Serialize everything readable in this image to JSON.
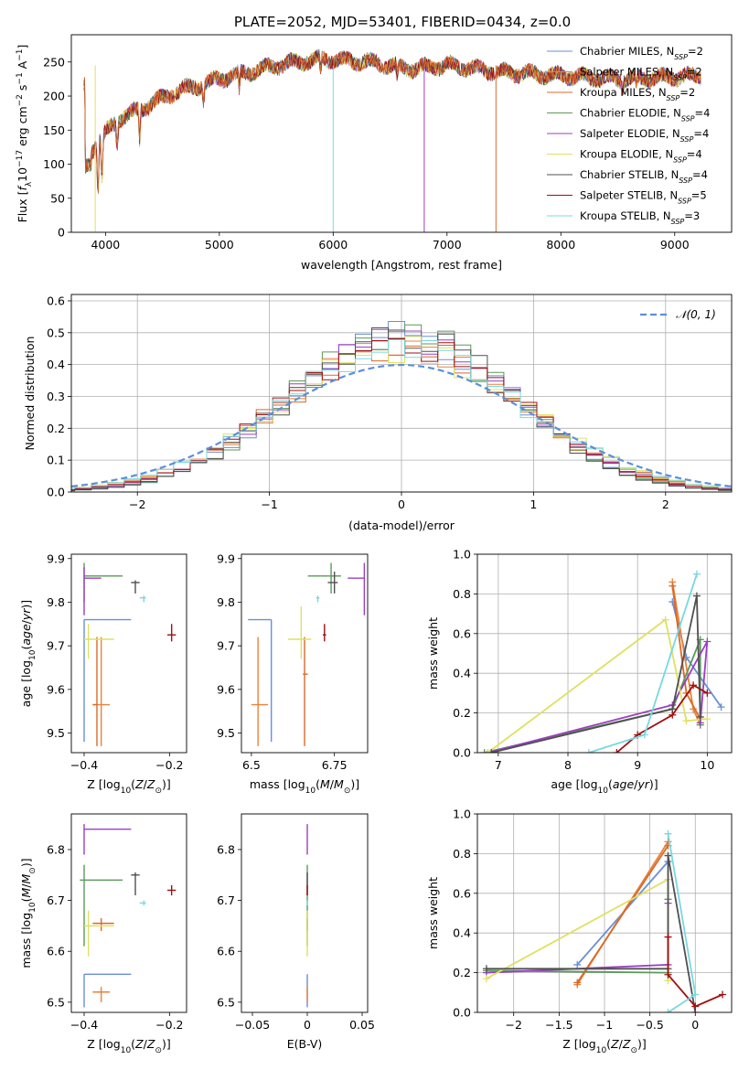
{
  "title": "PLATE=2052, MJD=53401, FIBERID=0434, z=0.0",
  "series_colors": [
    "#6a8fd8",
    "#e8823b",
    "#d86a2a",
    "#5a9a5a",
    "#9b3fc0",
    "#e0e060",
    "#505050",
    "#a01010",
    "#78d8e0"
  ],
  "chart_data": [
    {
      "type": "line",
      "xlabel": "wavelength [Angstrom, rest frame]",
      "ylabel": "Flux [f_λ 10^-17 erg cm^-2 s^-1 A^-1]",
      "xlim": [
        3700,
        9500
      ],
      "ylim": [
        0,
        290
      ],
      "xticks": [
        4000,
        5000,
        6000,
        7000,
        8000,
        9000
      ],
      "yticks": [
        0,
        50,
        100,
        150,
        200,
        250
      ],
      "grid": false,
      "legend": "top-right",
      "series": [
        {
          "name": "Chabrier MILES, N_SSP=2"
        },
        {
          "name": "Salpeter MILES, N_SSP=2"
        },
        {
          "name": "Kroupa MILES, N_SSP=2"
        },
        {
          "name": "Chabrier ELODIE, N_SSP=4"
        },
        {
          "name": "Salpeter ELODIE, N_SSP=4"
        },
        {
          "name": "Kroupa ELODIE, N_SSP=4"
        },
        {
          "name": "Chabrier STELIB, N_SSP=4"
        },
        {
          "name": "Salpeter STELIB, N_SSP=5"
        },
        {
          "name": "Kroupa STELIB, N_SSP=3"
        }
      ],
      "continuum": {
        "x": [
          3820,
          3950,
          4100,
          4300,
          4600,
          5000,
          5500,
          5900,
          6300,
          6700,
          7000,
          7500,
          8000,
          8500,
          9000,
          9200
        ],
        "y": [
          110,
          135,
          165,
          180,
          205,
          225,
          245,
          255,
          250,
          240,
          245,
          235,
          230,
          225,
          228,
          230
        ]
      }
    },
    {
      "type": "area",
      "xlabel": "(data-model)/error",
      "ylabel": "Normed distribution",
      "xlim": [
        -2.5,
        2.5
      ],
      "ylim": [
        0,
        0.62
      ],
      "xticks": [
        -2,
        -1,
        0,
        1,
        2
      ],
      "yticks": [
        0.0,
        0.1,
        0.2,
        0.3,
        0.4,
        0.5,
        0.6
      ],
      "grid": true,
      "legend": "top-right",
      "reference_curve": "𝒩(0, 1)"
    },
    {
      "type": "scatter",
      "xlabel": "Z [log10(Z/Z⊙)]",
      "ylabel": "age  [log10(age/yr)]",
      "xlim": [
        -0.43,
        -0.16
      ],
      "ylim": [
        9.455,
        9.91
      ],
      "xticks": [
        -0.4,
        -0.2
      ],
      "yticks": [
        9.5,
        9.6,
        9.7,
        9.8,
        9.9
      ],
      "points": [
        {
          "x": -0.4,
          "y": 9.76,
          "xlo": -0.4,
          "xhi": -0.29,
          "ylo": 9.48,
          "yhi": 9.76
        },
        {
          "x": -0.36,
          "y": 9.565,
          "xlo": -0.38,
          "xhi": -0.34,
          "ylo": 9.47,
          "yhi": 9.72
        },
        {
          "x": -0.37,
          "y": 9.565,
          "xlo": -0.38,
          "xhi": -0.37,
          "ylo": 9.47,
          "yhi": 9.72
        },
        {
          "x": -0.4,
          "y": 9.86,
          "xlo": -0.4,
          "xhi": -0.31,
          "ylo": 9.8,
          "yhi": 9.89
        },
        {
          "x": -0.4,
          "y": 9.855,
          "xlo": -0.4,
          "xhi": -0.36,
          "ylo": 9.77,
          "yhi": 9.88
        },
        {
          "x": -0.39,
          "y": 9.715,
          "xlo": -0.4,
          "xhi": -0.33,
          "ylo": 9.67,
          "yhi": 9.75
        },
        {
          "x": -0.28,
          "y": 9.845,
          "xlo": -0.29,
          "xhi": -0.27,
          "ylo": 9.82,
          "yhi": 9.85
        },
        {
          "x": -0.195,
          "y": 9.725,
          "xlo": -0.205,
          "xhi": -0.185,
          "ylo": 9.71,
          "yhi": 9.75
        },
        {
          "x": -0.26,
          "y": 9.81,
          "xlo": -0.27,
          "xhi": -0.255,
          "ylo": 9.8,
          "yhi": 9.815
        }
      ]
    },
    {
      "type": "scatter",
      "xlabel": "mass [log10(M/M⊙)]",
      "ylabel": "",
      "xlim": [
        6.47,
        6.85
      ],
      "ylim": [
        9.455,
        9.91
      ],
      "xticks": [
        6.5,
        6.75
      ],
      "yticks": [
        9.5,
        9.6,
        9.7,
        9.8,
        9.9
      ],
      "points": [
        {
          "x": 6.56,
          "y": 9.76,
          "xlo": 6.49,
          "xhi": 6.56,
          "ylo": 9.48,
          "yhi": 9.76
        },
        {
          "x": 6.52,
          "y": 9.565,
          "xlo": 6.5,
          "xhi": 6.55,
          "ylo": 9.47,
          "yhi": 9.72
        },
        {
          "x": 6.66,
          "y": 9.635,
          "xlo": 6.655,
          "xhi": 6.67,
          "ylo": 9.47,
          "yhi": 9.72
        },
        {
          "x": 6.74,
          "y": 9.86,
          "xlo": 6.67,
          "xhi": 6.77,
          "ylo": 9.82,
          "yhi": 9.89
        },
        {
          "x": 6.84,
          "y": 9.855,
          "xlo": 6.79,
          "xhi": 6.84,
          "ylo": 9.77,
          "yhi": 9.89
        },
        {
          "x": 6.65,
          "y": 9.715,
          "xlo": 6.61,
          "xhi": 6.68,
          "ylo": 9.67,
          "yhi": 9.79
        },
        {
          "x": 6.75,
          "y": 9.845,
          "xlo": 6.73,
          "xhi": 6.76,
          "ylo": 9.82,
          "yhi": 9.87
        },
        {
          "x": 6.72,
          "y": 9.725,
          "xlo": 6.715,
          "xhi": 6.725,
          "ylo": 9.71,
          "yhi": 9.75
        },
        {
          "x": 6.7,
          "y": 9.81,
          "xlo": 6.695,
          "xhi": 6.705,
          "ylo": 9.8,
          "yhi": 9.815
        }
      ]
    },
    {
      "type": "line",
      "xlabel": "age  [log10(age/yr)]",
      "ylabel": "mass weight",
      "xlim": [
        6.7,
        10.35
      ],
      "ylim": [
        0,
        1.0
      ],
      "xticks": [
        7,
        8,
        9,
        10
      ],
      "yticks": [
        0.0,
        0.2,
        0.4,
        0.6,
        0.8,
        1.0
      ],
      "grid": true
    },
    {
      "type": "scatter",
      "xlabel": "Z [log10(Z/Z⊙)]",
      "ylabel": "mass [log10(M/M⊙)]",
      "xlim": [
        -0.43,
        -0.16
      ],
      "ylim": [
        6.48,
        6.87
      ],
      "xticks": [
        -0.4,
        -0.2
      ],
      "yticks": [
        6.5,
        6.6,
        6.7,
        6.8
      ],
      "points": [
        {
          "x": -0.4,
          "y": 6.555,
          "xlo": -0.4,
          "xhi": -0.29,
          "ylo": 6.49,
          "yhi": 6.555
        },
        {
          "x": -0.36,
          "y": 6.52,
          "xlo": -0.38,
          "xhi": -0.34,
          "ylo": 6.5,
          "yhi": 6.53
        },
        {
          "x": -0.36,
          "y": 6.655,
          "xlo": -0.38,
          "xhi": -0.33,
          "ylo": 6.64,
          "yhi": 6.665
        },
        {
          "x": -0.4,
          "y": 6.74,
          "xlo": -0.41,
          "xhi": -0.31,
          "ylo": 6.61,
          "yhi": 6.77
        },
        {
          "x": -0.4,
          "y": 6.84,
          "xlo": -0.4,
          "xhi": -0.29,
          "ylo": 6.79,
          "yhi": 6.85
        },
        {
          "x": -0.39,
          "y": 6.65,
          "xlo": -0.4,
          "xhi": -0.33,
          "ylo": 6.59,
          "yhi": 6.68
        },
        {
          "x": -0.28,
          "y": 6.75,
          "xlo": -0.29,
          "xhi": -0.27,
          "ylo": 6.71,
          "yhi": 6.755
        },
        {
          "x": -0.195,
          "y": 6.72,
          "xlo": -0.205,
          "xhi": -0.185,
          "ylo": 6.71,
          "yhi": 6.73
        },
        {
          "x": -0.26,
          "y": 6.695,
          "xlo": -0.27,
          "xhi": -0.255,
          "ylo": 6.69,
          "yhi": 6.7
        }
      ]
    },
    {
      "type": "scatter",
      "xlabel": "E(B-V)",
      "ylabel": "",
      "xlim": [
        -0.06,
        0.055
      ],
      "ylim": [
        6.48,
        6.87
      ],
      "xticks": [
        -0.05,
        0.0,
        0.05
      ],
      "yticks": [
        6.5,
        6.6,
        6.7,
        6.8
      ],
      "points": [
        {
          "x": 0.0,
          "y": 6.555,
          "xlo": 0.0,
          "xhi": 0.0,
          "ylo": 6.49,
          "yhi": 6.555
        },
        {
          "x": 0.0,
          "y": 6.52,
          "xlo": 0.0,
          "xhi": 0.0,
          "ylo": 6.5,
          "yhi": 6.53
        },
        {
          "x": 0.0,
          "y": 6.655,
          "xlo": 0.0,
          "xhi": 0.0,
          "ylo": 6.64,
          "yhi": 6.665
        },
        {
          "x": 0.0,
          "y": 6.74,
          "xlo": 0.0,
          "xhi": 0.0,
          "ylo": 6.61,
          "yhi": 6.77
        },
        {
          "x": 0.0,
          "y": 6.84,
          "xlo": 0.0,
          "xhi": 0.0,
          "ylo": 6.79,
          "yhi": 6.85
        },
        {
          "x": 0.0,
          "y": 6.65,
          "xlo": 0.0,
          "xhi": 0.0,
          "ylo": 6.59,
          "yhi": 6.68
        },
        {
          "x": 0.0,
          "y": 6.75,
          "xlo": 0.0,
          "xhi": 0.0,
          "ylo": 6.71,
          "yhi": 6.755
        },
        {
          "x": 0.0,
          "y": 6.72,
          "xlo": 0.0,
          "xhi": 0.0,
          "ylo": 6.71,
          "yhi": 6.73
        },
        {
          "x": 0.0,
          "y": 6.695,
          "xlo": 0.0,
          "xhi": 0.0,
          "ylo": 6.69,
          "yhi": 6.7
        }
      ]
    },
    {
      "type": "line",
      "xlabel": "Z [log10(Z/Z⊙)]",
      "ylabel": "mass weight",
      "xlim": [
        -2.4,
        0.4
      ],
      "ylim": [
        0,
        1.0
      ],
      "xticks": [
        -2.0,
        -1.5,
        -1.0,
        -0.5,
        0.0
      ],
      "yticks": [
        0.0,
        0.2,
        0.4,
        0.6,
        0.8,
        1.0
      ],
      "grid": true
    }
  ],
  "weights_age": [
    [
      [
        9.5,
        0.76
      ],
      [
        9.7,
        0.48
      ],
      [
        10.2,
        0.23
      ]
    ],
    [
      [
        9.5,
        0.86
      ],
      [
        9.8,
        0.22
      ],
      [
        9.9,
        0.14
      ]
    ],
    [
      [
        9.5,
        0.84
      ],
      [
        9.7,
        0.3
      ],
      [
        9.9,
        0.17
      ]
    ],
    [
      [
        6.8,
        0.0
      ],
      [
        9.5,
        0.22
      ],
      [
        9.9,
        0.57
      ],
      [
        9.9,
        0.14
      ]
    ],
    [
      [
        6.85,
        0.0
      ],
      [
        9.5,
        0.24
      ],
      [
        10.0,
        0.56
      ],
      [
        9.9,
        0.15
      ]
    ],
    [
      [
        6.85,
        0.0
      ],
      [
        9.4,
        0.67
      ],
      [
        9.7,
        0.16
      ],
      [
        10.0,
        0.17
      ]
    ],
    [
      [
        6.9,
        0.0
      ],
      [
        9.5,
        0.22
      ],
      [
        9.85,
        0.79
      ],
      [
        9.9,
        0.18
      ]
    ],
    [
      [
        8.7,
        0.0
      ],
      [
        9.0,
        0.09
      ],
      [
        9.5,
        0.19
      ],
      [
        9.8,
        0.34
      ],
      [
        10.0,
        0.3
      ]
    ],
    [
      [
        8.3,
        0.0
      ],
      [
        9.1,
        0.09
      ],
      [
        9.85,
        0.9
      ]
    ]
  ],
  "weights_Z": [
    [
      [
        -1.3,
        0.24
      ],
      [
        -0.3,
        0.76
      ]
    ],
    [
      [
        -1.3,
        0.14
      ],
      [
        -0.3,
        0.86
      ]
    ],
    [
      [
        -1.3,
        0.15
      ],
      [
        -0.3,
        0.84
      ]
    ],
    [
      [
        -2.3,
        0.21
      ],
      [
        -0.3,
        0.2
      ],
      [
        -0.3,
        0.57
      ]
    ],
    [
      [
        -2.3,
        0.2
      ],
      [
        -0.3,
        0.24
      ],
      [
        -0.3,
        0.55
      ]
    ],
    [
      [
        -2.3,
        0.17
      ],
      [
        -0.3,
        0.67
      ],
      [
        -0.3,
        0.16
      ]
    ],
    [
      [
        -2.3,
        0.22
      ],
      [
        -0.3,
        0.22
      ],
      [
        -0.3,
        0.79
      ],
      [
        0.0,
        0.0
      ]
    ],
    [
      [
        -0.3,
        0.38
      ],
      [
        -0.3,
        0.19
      ],
      [
        0.0,
        0.03
      ],
      [
        0.3,
        0.09
      ]
    ],
    [
      [
        -0.3,
        0.0
      ],
      [
        0.0,
        0.09
      ],
      [
        -0.3,
        0.9
      ]
    ]
  ]
}
